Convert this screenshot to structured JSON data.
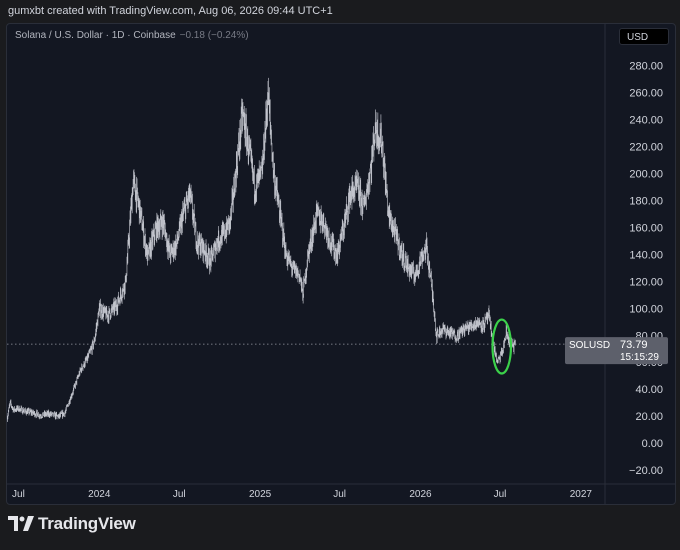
{
  "header": {
    "creator_text": "gumxbt created with TradingView.com, Aug 06, 2026 09:44 UTC+1"
  },
  "symbol": {
    "title": "Solana / U.S. Dollar · 1D · Coinbase",
    "change": "−0.18 (−0.24%)"
  },
  "currency_button": "USD",
  "price_label": {
    "symbol": "SOLUSD",
    "price": "73.79",
    "countdown": "15:15:29"
  },
  "footer": {
    "brand": "TradingView"
  },
  "colors": {
    "background": "#131722",
    "candles": "#d1d4dc",
    "annotation": "#3bd14a",
    "price_tag": "#5d606b"
  },
  "chart_data": {
    "type": "line",
    "title": "",
    "xlabel": "",
    "ylabel": "",
    "y_axis_position": "right",
    "grid": false,
    "ylim": [
      -30,
      295
    ],
    "y_ticks": [
      -20,
      0,
      20,
      40,
      60,
      80,
      100,
      120,
      140,
      160,
      180,
      200,
      220,
      240,
      260,
      280
    ],
    "y_tick_labels": [
      "−20.00",
      "0.00",
      "20.00",
      "40.00",
      "60.00",
      "80.00",
      "100.00",
      "120.00",
      "140.00",
      "160.00",
      "180.00",
      "200.00",
      "220.00",
      "240.00",
      "260.00",
      "280.00"
    ],
    "x_range": [
      "2023-06-05",
      "2027-02-25"
    ],
    "x_ticks": [
      {
        "date": "2023-07-01",
        "label": "Jul"
      },
      {
        "date": "2024-01-01",
        "label": "2024"
      },
      {
        "date": "2024-07-01",
        "label": "Jul"
      },
      {
        "date": "2025-01-01",
        "label": "2025"
      },
      {
        "date": "2025-07-01",
        "label": "Jul"
      },
      {
        "date": "2026-01-01",
        "label": "2026"
      },
      {
        "date": "2026-07-01",
        "label": "Jul"
      },
      {
        "date": "2027-01-01",
        "label": "2027"
      }
    ],
    "last_price": 73.79,
    "series": [
      {
        "x": [
          "2023-06-05",
          "2023-06-12",
          "2023-06-20",
          "2023-07-01",
          "2023-07-15",
          "2023-08-01",
          "2023-08-20",
          "2023-09-10",
          "2023-10-01",
          "2023-10-15",
          "2023-11-01",
          "2023-11-20",
          "2023-12-05",
          "2023-12-20",
          "2024-01-01",
          "2024-01-20",
          "2024-02-10",
          "2024-03-01",
          "2024-03-18",
          "2024-04-01",
          "2024-04-20",
          "2024-05-10",
          "2024-05-25",
          "2024-06-10",
          "2024-06-25",
          "2024-07-10",
          "2024-07-25",
          "2024-08-10",
          "2024-08-25",
          "2024-09-10",
          "2024-09-25",
          "2024-10-10",
          "2024-10-25",
          "2024-11-10",
          "2024-11-22",
          "2024-12-05",
          "2024-12-20",
          "2025-01-05",
          "2025-01-19",
          "2025-02-01",
          "2025-02-15",
          "2025-03-01",
          "2025-03-15",
          "2025-04-01",
          "2025-04-08",
          "2025-04-20",
          "2025-05-10",
          "2025-05-25",
          "2025-06-10",
          "2025-06-25",
          "2025-07-10",
          "2025-07-25",
          "2025-08-10",
          "2025-08-25",
          "2025-09-10",
          "2025-09-20",
          "2025-10-05",
          "2025-10-20",
          "2025-11-05",
          "2025-11-20",
          "2025-12-05",
          "2025-12-20",
          "2026-01-05",
          "2026-01-15",
          "2026-01-25",
          "2026-02-01",
          "2026-02-06",
          "2026-02-20",
          "2026-03-10",
          "2026-03-25",
          "2026-04-10",
          "2026-04-25",
          "2026-05-10",
          "2026-05-25",
          "2026-06-05",
          "2026-06-15",
          "2026-06-25",
          "2026-07-01",
          "2026-07-08",
          "2026-07-15",
          "2026-07-22",
          "2026-08-01",
          "2026-08-06"
        ],
        "values": [
          19,
          30,
          25,
          26,
          24,
          23,
          21,
          22,
          20,
          23,
          38,
          55,
          63,
          75,
          100,
          95,
          103,
          120,
          195,
          175,
          138,
          160,
          165,
          140,
          148,
          170,
          185,
          150,
          145,
          135,
          150,
          155,
          165,
          210,
          245,
          220,
          190,
          200,
          260,
          200,
          170,
          140,
          130,
          125,
          110,
          140,
          170,
          165,
          150,
          140,
          160,
          185,
          190,
          175,
          205,
          235,
          225,
          170,
          155,
          140,
          130,
          125,
          140,
          145,
          120,
          100,
          80,
          85,
          82,
          80,
          85,
          87,
          90,
          88,
          95,
          75,
          60,
          64,
          70,
          82,
          76,
          72,
          73.79
        ]
      }
    ]
  },
  "annotation": {
    "shape": "circle",
    "x_center": "2026-07-05",
    "y_center": 72,
    "x_radius_days": 21,
    "y_radius": 20
  }
}
